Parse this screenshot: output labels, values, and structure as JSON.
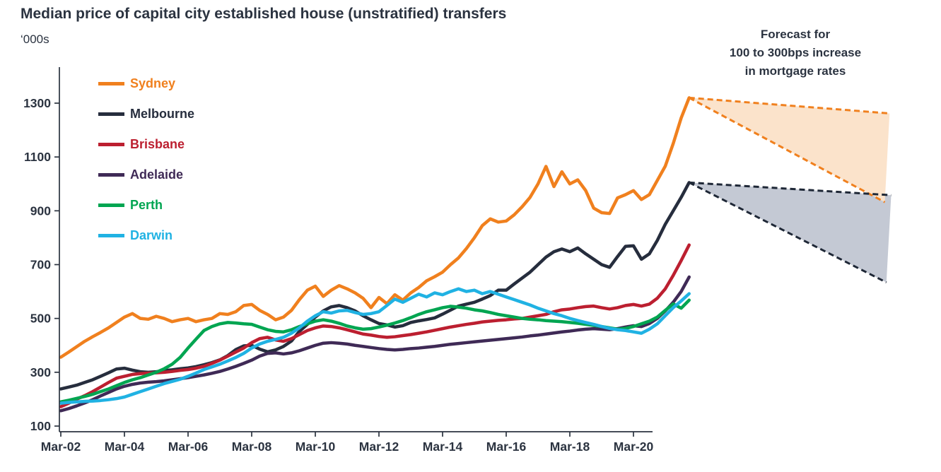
{
  "title": "Median price of capital city established house (unstratified) transfers",
  "units_label": "‘000s",
  "colors": {
    "text": "#2B3340",
    "axis": "#2B3340",
    "background": "#FFFFFF"
  },
  "legend": {
    "items": [
      {
        "label": "Sydney",
        "color": "#F0801E"
      },
      {
        "label": "Melbourne",
        "color": "#262D3D"
      },
      {
        "label": "Brisbane",
        "color": "#BC1F30"
      },
      {
        "label": "Adelaide",
        "color": "#3F2A56"
      },
      {
        "label": "Perth",
        "color": "#00A551"
      },
      {
        "label": "Darwin",
        "color": "#20B2E3"
      }
    ]
  },
  "forecast": {
    "label_lines": [
      "Forecast for",
      "100 to 300bps increase",
      "in mortgage rates"
    ],
    "fans": [
      {
        "name": "sydney-forecast-fan",
        "line_color": "#F0801E",
        "fill_color": "#FBE3CB",
        "apex": {
          "t": 2021.75,
          "v": 1320
        },
        "upper_end": {
          "t": 2028.05,
          "v": 1262
        },
        "lower_end": {
          "t": 2027.9,
          "v": 932
        }
      },
      {
        "name": "melbourne-forecast-fan",
        "line_color": "#1E2736",
        "fill_color": "#C4C9D4",
        "apex": {
          "t": 2021.75,
          "v": 1005
        },
        "upper_end": {
          "t": 2028.1,
          "v": 958
        },
        "lower_end": {
          "t": 2027.95,
          "v": 634
        }
      }
    ]
  },
  "chart_data": {
    "type": "line",
    "x_unit": "quarterly",
    "x_start": 2002.0,
    "x_step": 0.25,
    "ylim": [
      100,
      1300
    ],
    "y_ticks": [
      100,
      300,
      500,
      700,
      900,
      1100,
      1300
    ],
    "x_tick_labels": [
      "Mar-02",
      "Mar-04",
      "Mar-06",
      "Mar-08",
      "Mar-10",
      "Mar-12",
      "Mar-14",
      "Mar-16",
      "Mar-18",
      "Mar-20"
    ],
    "x_tick_start": 2002,
    "x_tick_step": 2,
    "grid": false,
    "legend_position": "upper-left",
    "series": [
      {
        "name": "Sydney",
        "color": "#F0801E",
        "values": [
          356,
          375,
          395,
          415,
          432,
          448,
          465,
          485,
          505,
          518,
          500,
          497,
          508,
          500,
          488,
          495,
          500,
          488,
          495,
          500,
          518,
          515,
          525,
          548,
          552,
          530,
          515,
          495,
          505,
          530,
          570,
          605,
          620,
          582,
          605,
          622,
          610,
          595,
          575,
          540,
          578,
          555,
          588,
          568,
          595,
          615,
          640,
          655,
          672,
          700,
          725,
          760,
          800,
          845,
          870,
          858,
          862,
          885,
          915,
          950,
          1000,
          1065,
          990,
          1045,
          1000,
          1015,
          975,
          910,
          893,
          890,
          948,
          960,
          975,
          942,
          960,
          1013,
          1066,
          1150,
          1245,
          1320
        ]
      },
      {
        "name": "Melbourne",
        "color": "#262D3D",
        "values": [
          238,
          245,
          252,
          262,
          272,
          285,
          298,
          312,
          315,
          308,
          302,
          300,
          302,
          306,
          309,
          313,
          316,
          321,
          328,
          336,
          346,
          362,
          384,
          398,
          400,
          386,
          376,
          383,
          396,
          416,
          452,
          478,
          505,
          528,
          543,
          548,
          540,
          528,
          510,
          495,
          481,
          476,
          468,
          473,
          485,
          491,
          496,
          502,
          516,
          531,
          546,
          553,
          560,
          572,
          585,
          605,
          605,
          628,
          650,
          672,
          700,
          728,
          748,
          758,
          748,
          762,
          740,
          720,
          700,
          690,
          730,
          768,
          770,
          720,
          740,
          790,
          850,
          900,
          950,
          1005
        ]
      },
      {
        "name": "Brisbane",
        "color": "#BC1F30",
        "values": [
          172,
          185,
          200,
          213,
          228,
          245,
          262,
          278,
          285,
          292,
          295,
          297,
          298,
          300,
          303,
          307,
          310,
          315,
          322,
          333,
          345,
          360,
          375,
          390,
          410,
          425,
          430,
          420,
          415,
          425,
          440,
          455,
          465,
          472,
          470,
          465,
          458,
          450,
          442,
          438,
          433,
          430,
          432,
          436,
          440,
          445,
          450,
          456,
          462,
          468,
          473,
          478,
          482,
          487,
          490,
          493,
          495,
          498,
          500,
          505,
          510,
          515,
          525,
          532,
          535,
          540,
          544,
          546,
          540,
          535,
          540,
          548,
          552,
          546,
          553,
          575,
          610,
          660,
          715,
          773
        ]
      },
      {
        "name": "Adelaide",
        "color": "#3F2A56",
        "values": [
          157,
          165,
          175,
          186,
          198,
          212,
          225,
          238,
          248,
          255,
          260,
          263,
          265,
          268,
          272,
          276,
          280,
          285,
          290,
          296,
          303,
          312,
          322,
          333,
          345,
          360,
          370,
          372,
          368,
          372,
          380,
          390,
          400,
          408,
          410,
          408,
          405,
          400,
          396,
          392,
          388,
          385,
          383,
          385,
          388,
          390,
          393,
          396,
          400,
          404,
          407,
          410,
          413,
          416,
          419,
          422,
          425,
          428,
          431,
          435,
          438,
          442,
          446,
          450,
          453,
          457,
          460,
          462,
          460,
          458,
          462,
          468,
          473,
          470,
          481,
          500,
          528,
          560,
          600,
          654
        ]
      },
      {
        "name": "Perth",
        "color": "#00A551",
        "values": [
          190,
          196,
          203,
          210,
          218,
          228,
          238,
          250,
          262,
          272,
          280,
          290,
          300,
          313,
          330,
          355,
          390,
          423,
          455,
          470,
          480,
          485,
          483,
          480,
          478,
          468,
          458,
          452,
          450,
          458,
          470,
          480,
          490,
          495,
          490,
          482,
          472,
          465,
          460,
          462,
          468,
          475,
          483,
          492,
          503,
          515,
          525,
          532,
          540,
          545,
          542,
          538,
          532,
          528,
          522,
          515,
          510,
          505,
          500,
          497,
          495,
          492,
          490,
          488,
          485,
          482,
          478,
          474,
          470,
          465,
          460,
          463,
          470,
          480,
          490,
          505,
          530,
          554,
          538,
          568
        ]
      },
      {
        "name": "Darwin",
        "color": "#20B2E3",
        "values": [
          185,
          188,
          190,
          192,
          193,
          195,
          198,
          202,
          208,
          218,
          228,
          238,
          248,
          258,
          266,
          274,
          285,
          297,
          310,
          320,
          330,
          342,
          355,
          370,
          390,
          405,
          415,
          422,
          430,
          445,
          465,
          490,
          510,
          525,
          520,
          528,
          530,
          522,
          515,
          518,
          525,
          548,
          572,
          560,
          575,
          590,
          580,
          595,
          588,
          600,
          610,
          600,
          605,
          592,
          600,
          590,
          580,
          570,
          560,
          550,
          538,
          528,
          518,
          510,
          500,
          492,
          485,
          478,
          470,
          463,
          458,
          455,
          450,
          445,
          460,
          480,
          510,
          540,
          565,
          592
        ]
      }
    ]
  }
}
